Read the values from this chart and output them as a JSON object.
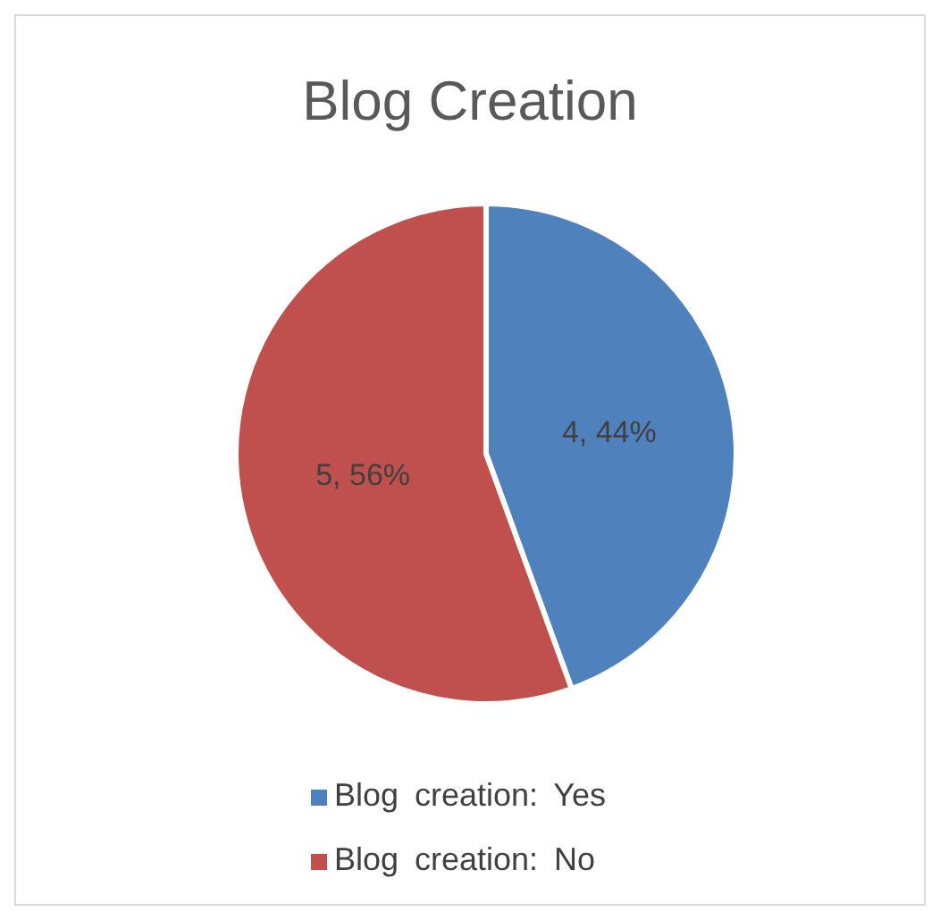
{
  "chart_data": {
    "type": "pie",
    "title": "Blog Creation",
    "categories": [
      "Blog creation: Yes",
      "Blog creation: No"
    ],
    "values": [
      4,
      5
    ],
    "colors": [
      "#4f81bd",
      "#c0504d"
    ],
    "value_labels": [
      "4, 44%",
      "5, 56%"
    ],
    "legend": "bottom"
  }
}
